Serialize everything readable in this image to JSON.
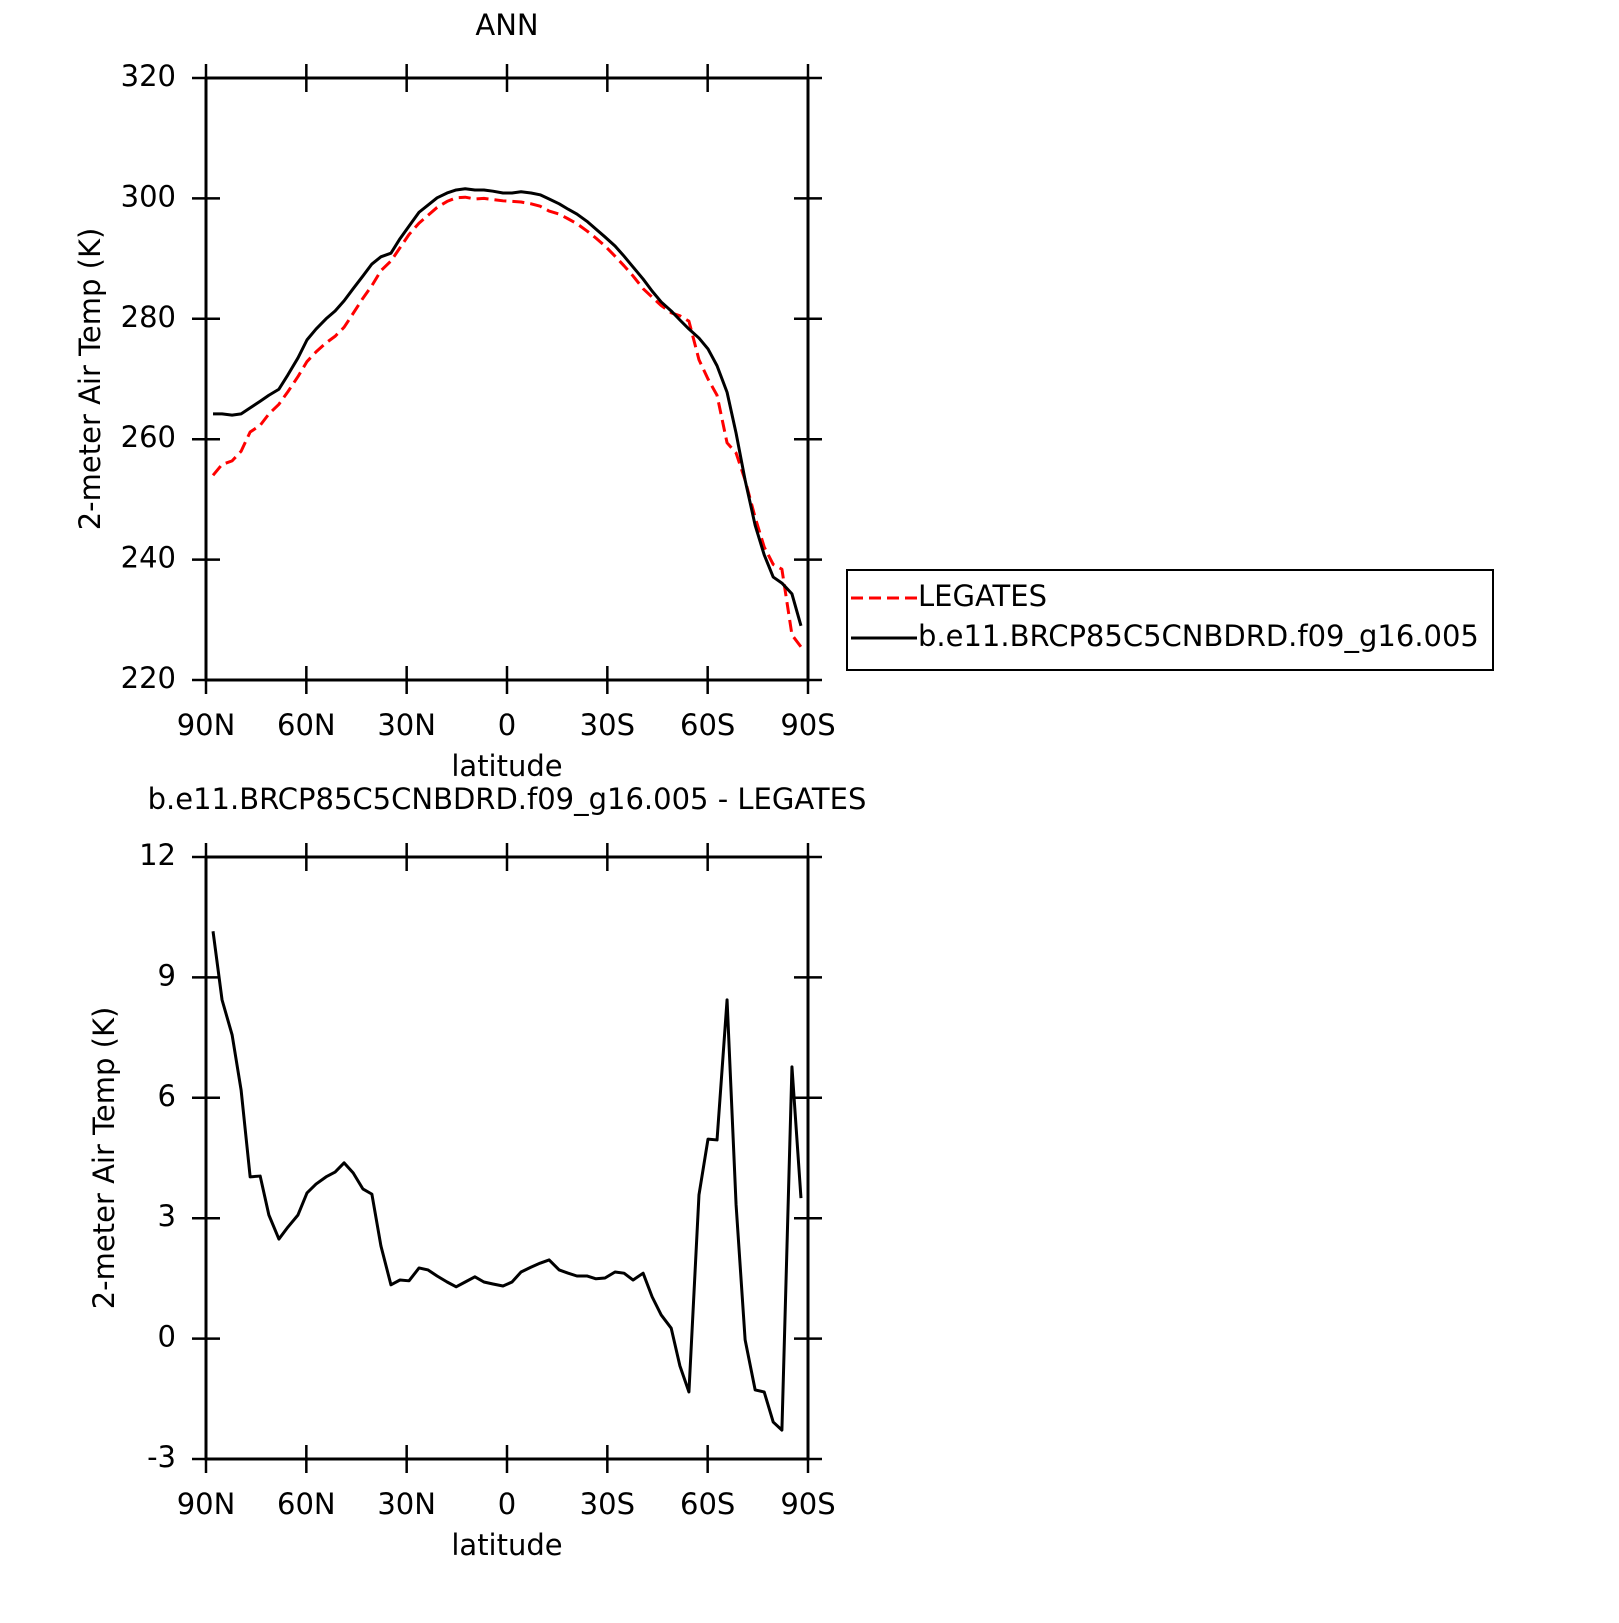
{
  "chart_data": [
    {
      "type": "line",
      "title": "ANN",
      "xlabel": "latitude",
      "ylabel": "2-meter Air Temp (K)",
      "x": [
        87.9,
        85.2,
        82.2,
        79.5,
        76.8,
        73.8,
        71.2,
        68.2,
        65.5,
        62.5,
        59.8,
        57.1,
        54.1,
        51.4,
        48.7,
        46.0,
        43.1,
        40.4,
        37.7,
        34.7,
        32.0,
        29.3,
        26.3,
        23.6,
        20.9,
        17.9,
        15.2,
        12.5,
        9.6,
        6.9,
        4.2,
        1.2,
        -1.5,
        -4.2,
        -7.2,
        -9.9,
        -12.6,
        -15.6,
        -18.3,
        -20.9,
        -23.9,
        -26.6,
        -29.3,
        -32.3,
        -35.0,
        -37.7,
        -40.7,
        -43.4,
        -46.1,
        -49.1,
        -51.7,
        -54.4,
        -57.4,
        -60.1,
        -62.8,
        -65.8,
        -68.5,
        -71.2,
        -74.2,
        -76.9,
        -79.6,
        -82.2,
        -85.2,
        -87.9
      ],
      "series": [
        {
          "name": "LEGATES",
          "color": "#ff0000",
          "linestyle": "dashed",
          "values": [
            254.0,
            255.8,
            256.4,
            258.0,
            261.2,
            262.3,
            264.2,
            265.8,
            267.9,
            270.4,
            272.9,
            274.5,
            276.0,
            277.1,
            278.6,
            280.9,
            283.4,
            285.5,
            288.0,
            289.6,
            291.8,
            294.0,
            295.9,
            297.2,
            298.5,
            299.5,
            300.1,
            300.2,
            299.9,
            300.0,
            299.8,
            299.6,
            299.5,
            299.4,
            299.1,
            298.7,
            297.9,
            297.4,
            296.6,
            295.8,
            294.6,
            293.4,
            292.1,
            290.4,
            288.8,
            287.1,
            285.0,
            283.6,
            282.2,
            281.0,
            280.5,
            279.6,
            273.2,
            270.0,
            267.3,
            259.4,
            257.7,
            253.2,
            247.0,
            242.1,
            239.2,
            238.4,
            227.5,
            225.5
          ]
        },
        {
          "name": "b.e11.BRCP85C5CNBDRD.f09_g16.005",
          "color": "#000000",
          "linestyle": "solid",
          "values": [
            264.2,
            264.2,
            264.0,
            264.2,
            265.2,
            266.3,
            267.3,
            268.3,
            270.7,
            273.5,
            276.5,
            278.3,
            280.0,
            281.3,
            283.0,
            285.0,
            287.1,
            289.1,
            290.3,
            290.9,
            293.3,
            295.4,
            297.7,
            298.9,
            300.1,
            300.9,
            301.4,
            301.6,
            301.4,
            301.4,
            301.2,
            300.9,
            300.9,
            301.1,
            300.9,
            300.6,
            299.9,
            299.1,
            298.2,
            297.4,
            296.2,
            294.9,
            293.6,
            292.1,
            290.4,
            288.6,
            286.6,
            284.6,
            282.8,
            281.3,
            279.8,
            278.3,
            276.8,
            275.0,
            272.2,
            267.8,
            261.0,
            253.2,
            245.7,
            240.8,
            237.1,
            236.1,
            234.3,
            229.0
          ]
        }
      ],
      "xlim": [
        90,
        -90
      ],
      "xticks": [
        {
          "value": 90,
          "label": "90N"
        },
        {
          "value": 60,
          "label": "60N"
        },
        {
          "value": 30,
          "label": "30N"
        },
        0,
        {
          "value": -30,
          "label": "30S"
        },
        {
          "value": -60,
          "label": "60S"
        },
        {
          "value": -90,
          "label": "90S"
        }
      ],
      "ylim": [
        220,
        320
      ],
      "yticks": [
        220,
        240,
        260,
        280,
        300,
        320
      ],
      "legend": "right"
    },
    {
      "type": "line",
      "title": "b.e11.BRCP85C5CNBDRD.f09_g16.005 - LEGATES",
      "xlabel": "latitude",
      "ylabel": "2-meter Air Temp (K)",
      "x": [
        87.9,
        85.2,
        82.2,
        79.5,
        76.8,
        73.8,
        71.2,
        68.2,
        65.5,
        62.5,
        59.8,
        57.1,
        54.1,
        51.4,
        48.7,
        46.0,
        43.1,
        40.4,
        37.7,
        34.7,
        32.0,
        29.3,
        26.3,
        23.6,
        20.9,
        17.9,
        15.2,
        12.5,
        9.6,
        6.9,
        4.2,
        1.2,
        -1.5,
        -4.2,
        -7.2,
        -9.9,
        -12.6,
        -15.6,
        -18.3,
        -20.9,
        -23.9,
        -26.6,
        -29.3,
        -32.3,
        -35.0,
        -37.7,
        -40.7,
        -43.4,
        -46.1,
        -49.1,
        -51.7,
        -54.4,
        -57.4,
        -60.1,
        -62.8,
        -65.8,
        -68.5,
        -71.2,
        -74.2,
        -76.9,
        -79.6,
        -82.2,
        -85.2,
        -87.9
      ],
      "color": "#000000",
      "values": [
        10.15,
        8.44,
        7.57,
        6.19,
        4.03,
        4.05,
        3.08,
        2.48,
        2.78,
        3.08,
        3.63,
        3.85,
        4.03,
        4.15,
        4.38,
        4.13,
        3.73,
        3.6,
        2.31,
        1.34,
        1.46,
        1.44,
        1.76,
        1.71,
        1.56,
        1.41,
        1.29,
        1.41,
        1.54,
        1.41,
        1.36,
        1.31,
        1.41,
        1.66,
        1.78,
        1.88,
        1.96,
        1.71,
        1.63,
        1.56,
        1.56,
        1.49,
        1.51,
        1.66,
        1.63,
        1.46,
        1.63,
        1.04,
        0.59,
        0.26,
        -0.68,
        -1.33,
        3.58,
        4.97,
        4.95,
        8.44,
        3.33,
        -0.03,
        -1.28,
        -1.33,
        -2.08,
        -2.28,
        6.77,
        3.5
      ],
      "xlim": [
        90,
        -90
      ],
      "xticks": [
        {
          "value": 90,
          "label": "90N"
        },
        {
          "value": 60,
          "label": "60N"
        },
        {
          "value": 30,
          "label": "30N"
        },
        0,
        {
          "value": -30,
          "label": "30S"
        },
        {
          "value": -60,
          "label": "60S"
        },
        {
          "value": -90,
          "label": "90S"
        }
      ],
      "ylim": [
        -3,
        12
      ],
      "yticks": [
        -3,
        0,
        3,
        6,
        9,
        12
      ]
    }
  ]
}
